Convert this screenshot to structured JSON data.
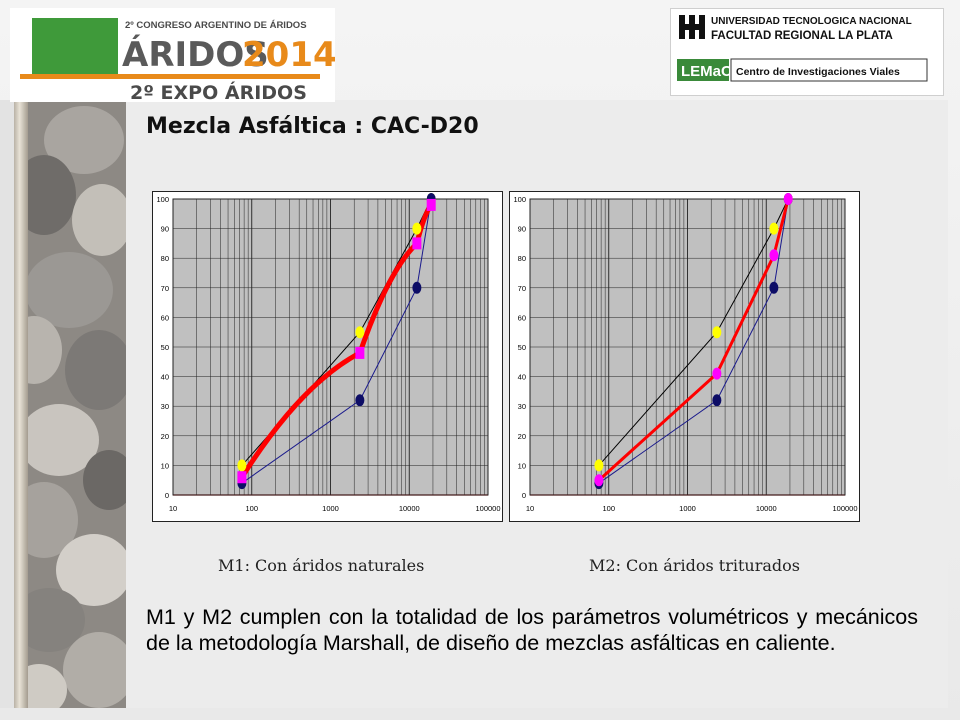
{
  "header": {
    "congress_line": "2º CONGRESO ARGENTINO DE ÁRIDOS",
    "brand": "ÁRIDOS",
    "year": "2014",
    "expo": "2º EXPO ÁRIDOS",
    "university": "UNIVERSIDAD TECNOLOGICA NACIONAL",
    "faculty": "FACULTAD REGIONAL LA PLATA",
    "lemac": "LEMaC",
    "center": "Centro de Investigaciones Viales",
    "colors": {
      "green": "#3f9a3a",
      "orange": "#e88a1a",
      "dark": "#4a4a4a"
    }
  },
  "title": "Mezcla Asfáltica : CAC-D20",
  "captions": [
    "M1: Con áridos naturales",
    "M2: Con áridos triturados"
  ],
  "body": "M1 y M2 cumplen con la totalidad de los parámetros volumétricos y mecánicos de la metodología Marshall, de diseño de mezclas asfálticas en caliente.",
  "chart_data": [
    {
      "type": "line",
      "x_scale": "log",
      "xlim": [
        10,
        100000
      ],
      "ylim": [
        0,
        100
      ],
      "x_ticks": [
        "10",
        "100",
        "1000",
        "10000",
        "100000"
      ],
      "y_ticks": [
        "0",
        "10",
        "20",
        "30",
        "40",
        "50",
        "60",
        "70",
        "80",
        "90",
        "100"
      ],
      "plot_background": "#c0c0c0",
      "grid": true,
      "series": [
        {
          "color": "#000000",
          "marker": "yellow circle",
          "points": [
            [
              75,
              10
            ],
            [
              2360,
              55
            ],
            [
              12500,
              90
            ],
            [
              19000,
              100
            ]
          ]
        },
        {
          "color": "#1a1a8c",
          "marker": "navy circle",
          "points": [
            [
              75,
              4
            ],
            [
              2360,
              32
            ],
            [
              12500,
              70
            ],
            [
              19000,
              100
            ]
          ]
        },
        {
          "color": "#ff0000",
          "marker": "magenta square",
          "curved": true,
          "points": [
            [
              75,
              6
            ],
            [
              2360,
              48
            ],
            [
              12500,
              85
            ],
            [
              19000,
              98
            ]
          ]
        }
      ]
    },
    {
      "type": "line",
      "x_scale": "log",
      "xlim": [
        10,
        100000
      ],
      "ylim": [
        0,
        100
      ],
      "x_ticks": [
        "10",
        "100",
        "1000",
        "10000",
        "100000"
      ],
      "y_ticks": [
        "0",
        "10",
        "20",
        "30",
        "40",
        "50",
        "60",
        "70",
        "80",
        "90",
        "100"
      ],
      "plot_background": "#c0c0c0",
      "grid": true,
      "series": [
        {
          "color": "#000000",
          "marker": "yellow circle",
          "points": [
            [
              75,
              10
            ],
            [
              2360,
              55
            ],
            [
              12500,
              90
            ],
            [
              19000,
              100
            ]
          ]
        },
        {
          "color": "#1a1a8c",
          "marker": "navy circle",
          "points": [
            [
              75,
              4
            ],
            [
              2360,
              32
            ],
            [
              12500,
              70
            ],
            [
              19000,
              100
            ]
          ]
        },
        {
          "color": "#ff0000",
          "marker": "magenta circle",
          "curved": false,
          "points": [
            [
              75,
              5
            ],
            [
              2360,
              41
            ],
            [
              12500,
              81
            ],
            [
              19000,
              100
            ]
          ]
        }
      ]
    }
  ]
}
